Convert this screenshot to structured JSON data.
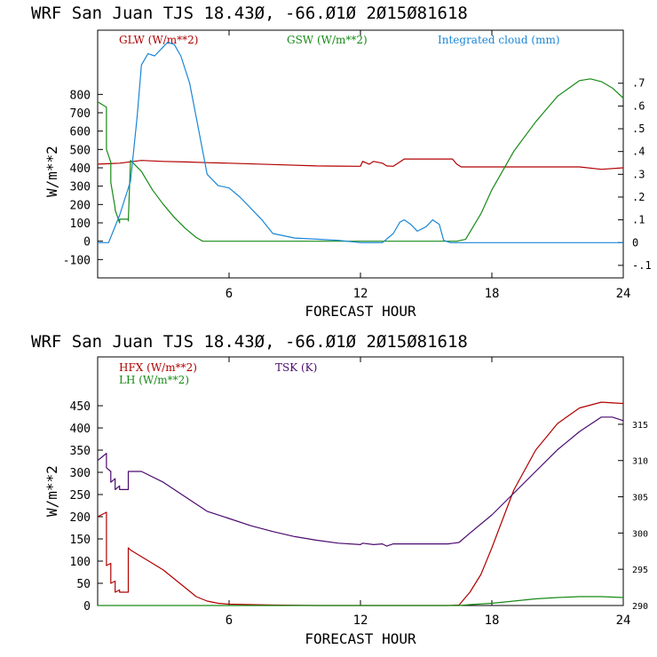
{
  "colors": {
    "glw": "#b00000",
    "gsw": "#178a17",
    "cloud": "#1a86d6",
    "hfx": "#b00000",
    "lh": "#178a17",
    "tsk": "#4b0a6e",
    "axis": "#000000"
  },
  "chart_data": [
    {
      "type": "line",
      "title": "WRF  San Juan TJS  18.43Ø, -66.Ø1Ø  2Ø15Ø81618",
      "xlabel": "FORECAST HOUR",
      "ylabel": "W/m**2",
      "xlim": [
        0,
        24
      ],
      "ylim": [
        -200,
        1150
      ],
      "y2lim": [
        -0.155,
        0.933
      ],
      "xticks": [
        0,
        6,
        12,
        18,
        24
      ],
      "xtick_labels": [
        "6",
        "12",
        "18",
        "24"
      ],
      "yticks": [
        -100,
        0,
        100,
        200,
        300,
        400,
        500,
        600,
        700,
        800
      ],
      "ytick_labels": [
        "-100",
        "0",
        "100",
        "200",
        "300",
        "400",
        "500",
        "600",
        "700",
        "800"
      ],
      "y2ticks": [
        -0.1,
        0,
        0.1,
        0.2,
        0.3,
        0.4,
        0.5,
        0.6,
        0.7
      ],
      "y2tick_labels": [
        "-.1",
        "0",
        ".1",
        ".2",
        ".3",
        ".4",
        ".5",
        ".6",
        ".7"
      ],
      "legend": [
        {
          "label": "GLW (W/m**2)",
          "series": "GLW"
        },
        {
          "label": "GSW (W/m**2)",
          "series": "GSW"
        },
        {
          "label": "Integrated cloud (mm)",
          "series": "CLOUD"
        }
      ],
      "series": [
        {
          "name": "GLW",
          "axis": "left",
          "x": [
            0,
            1,
            2,
            3,
            4,
            5,
            6,
            8,
            10,
            12,
            12.1,
            12.4,
            12.6,
            13,
            13.2,
            13.5,
            14,
            16.2,
            16.4,
            16.6,
            18,
            20,
            22,
            23,
            24
          ],
          "y": [
            420,
            425,
            440,
            435,
            432,
            428,
            425,
            418,
            410,
            408,
            435,
            420,
            435,
            425,
            410,
            408,
            448,
            448,
            420,
            405,
            405,
            405,
            405,
            392,
            400
          ]
        },
        {
          "name": "GSW",
          "axis": "left",
          "x": [
            0,
            0.4,
            0.4,
            0.6,
            0.6,
            0.8,
            0.8,
            1.0,
            1.0,
            1.4,
            1.4,
            1.5,
            2,
            2.5,
            3,
            3.5,
            4,
            4.5,
            4.8,
            5,
            16.4,
            16.8,
            17.5,
            18,
            19,
            20,
            21,
            22,
            22.5,
            23,
            23.5,
            24
          ],
          "y": [
            760,
            730,
            500,
            430,
            320,
            180,
            170,
            100,
            120,
            120,
            110,
            440,
            380,
            280,
            200,
            130,
            70,
            20,
            0,
            0,
            0,
            10,
            150,
            280,
            490,
            650,
            790,
            875,
            885,
            870,
            835,
            780
          ]
        },
        {
          "name": "CLOUD",
          "axis": "right",
          "x": [
            0,
            0.5,
            1.0,
            1.5,
            1.8,
            2.0,
            2.3,
            2.6,
            2.9,
            3.2,
            3.5,
            3.8,
            4.2,
            4.6,
            5.0,
            5.5,
            6.0,
            6.5,
            7.0,
            7.5,
            8,
            9,
            10,
            11,
            12,
            13,
            13.5,
            13.8,
            14,
            14.3,
            14.6,
            15.0,
            15.3,
            15.6,
            15.8,
            16.1,
            16.3,
            17,
            24
          ],
          "y": [
            0,
            0,
            0.12,
            0.27,
            0.55,
            0.78,
            0.83,
            0.82,
            0.85,
            0.88,
            0.87,
            0.82,
            0.7,
            0.5,
            0.3,
            0.25,
            0.24,
            0.2,
            0.15,
            0.1,
            0.04,
            0.02,
            0.015,
            0.01,
            0,
            0,
            0.04,
            0.09,
            0.1,
            0.08,
            0.05,
            0.07,
            0.1,
            0.08,
            0.01,
            0,
            0,
            0,
            0
          ]
        }
      ]
    },
    {
      "type": "line",
      "title": "WRF  San Juan TJS  18.43Ø, -66.Ø1Ø  2Ø15Ø81618",
      "xlabel": "FORECAST HOUR",
      "ylabel": "W/m**2",
      "xlim": [
        0,
        24
      ],
      "ylim": [
        0,
        560
      ],
      "y2lim": [
        290,
        324.3
      ],
      "xticks": [
        0,
        6,
        12,
        18,
        24
      ],
      "xtick_labels": [
        "6",
        "12",
        "18",
        "24"
      ],
      "yticks": [
        0,
        50,
        100,
        150,
        200,
        250,
        300,
        350,
        400,
        450
      ],
      "ytick_labels": [
        "0",
        "50",
        "100",
        "150",
        "200",
        "250",
        "300",
        "350",
        "400",
        "450"
      ],
      "y2ticks": [
        290,
        295,
        300,
        305,
        310,
        315
      ],
      "y2tick_labels": [
        "290",
        "295",
        "300",
        "305",
        "310",
        "315"
      ],
      "legend": [
        {
          "label": "HFX (W/m**2)",
          "series": "HFX"
        },
        {
          "label": "LH  (W/m**2)",
          "series": "LH"
        },
        {
          "label": "TSK (K)",
          "series": "TSK"
        }
      ],
      "series": [
        {
          "name": "HFX",
          "axis": "left",
          "x": [
            0,
            0.4,
            0.4,
            0.6,
            0.6,
            0.8,
            0.8,
            1.0,
            1.0,
            1.4,
            1.4,
            1.5,
            2,
            2.5,
            3,
            3.5,
            4,
            4.5,
            5,
            5.5,
            6,
            7,
            8,
            10,
            12,
            14,
            16,
            16.5,
            17,
            17.5,
            18,
            19,
            20,
            21,
            22,
            23,
            24
          ],
          "y": [
            200,
            210,
            90,
            95,
            50,
            55,
            30,
            35,
            30,
            30,
            130,
            125,
            110,
            95,
            80,
            60,
            40,
            20,
            10,
            5,
            3,
            2,
            1,
            0,
            0,
            0,
            0,
            1,
            30,
            70,
            130,
            260,
            350,
            410,
            445,
            458,
            455
          ]
        },
        {
          "name": "LH",
          "axis": "left",
          "x": [
            0,
            2,
            4,
            6,
            8,
            10,
            12,
            14,
            16,
            16.5,
            17,
            18,
            19,
            20,
            21,
            22,
            23,
            24
          ],
          "y": [
            0,
            0,
            0,
            0,
            0,
            0,
            0,
            0,
            0,
            0,
            2,
            5,
            10,
            15,
            18,
            20,
            20,
            18
          ]
        },
        {
          "name": "TSK",
          "axis": "right",
          "x": [
            0,
            0.4,
            0.4,
            0.6,
            0.6,
            0.8,
            0.8,
            1.0,
            1.0,
            1.4,
            1.4,
            1.5,
            2,
            3,
            4,
            5,
            6,
            7,
            8,
            9,
            10,
            11,
            12,
            12.1,
            12.6,
            13,
            13.2,
            13.5,
            14,
            15,
            16,
            16.5,
            17,
            18,
            19,
            20,
            21,
            22,
            23,
            23.5,
            24
          ],
          "y": [
            310,
            311,
            309,
            308.5,
            307,
            307.5,
            306,
            306.5,
            306,
            306,
            308.5,
            308.5,
            308.5,
            307,
            305,
            303,
            302,
            301,
            300.2,
            299.5,
            299,
            298.6,
            298.4,
            298.6,
            298.4,
            298.5,
            298.2,
            298.5,
            298.5,
            298.5,
            298.5,
            298.7,
            300,
            302.5,
            305.5,
            308.5,
            311.5,
            314,
            316,
            316,
            315.5
          ]
        }
      ]
    }
  ]
}
